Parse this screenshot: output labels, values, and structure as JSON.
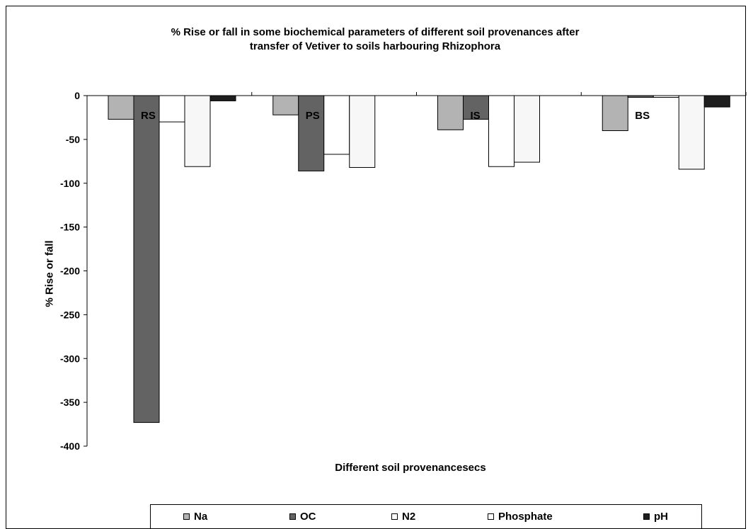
{
  "chart_data": {
    "type": "bar",
    "title_line1": "% Rise or fall in some biochemical parameters of different  soil  provenances after",
    "title_line2": "transfer of Vetiver to soils harbouring  Rhizophora",
    "xlabel": "Different soil provenancesecs",
    "ylabel": "% Rise or fall",
    "categories": [
      "RS",
      "PS",
      "IS",
      "BS"
    ],
    "series": [
      {
        "name": "Na",
        "values": [
          -27,
          -22,
          -39,
          -40
        ],
        "color": "#b3b3b3"
      },
      {
        "name": "OC",
        "values": [
          -373,
          -86,
          -27,
          -2
        ],
        "color": "#636363"
      },
      {
        "name": "N2",
        "values": [
          -30,
          -67,
          -81,
          -2
        ],
        "color": "#ffffff"
      },
      {
        "name": "Phosphate",
        "values": [
          -81,
          -82,
          -76,
          -84
        ],
        "color": "#f7f7f7"
      },
      {
        "name": "pH",
        "values": [
          -6,
          0,
          0,
          -13
        ],
        "color": "#1e1e1e"
      }
    ],
    "yticks": [
      0,
      -50,
      -100,
      -150,
      -200,
      -250,
      -300,
      -350,
      -400
    ],
    "ylim": [
      -400,
      0
    ],
    "grid": false,
    "legend_position": "bottom"
  }
}
